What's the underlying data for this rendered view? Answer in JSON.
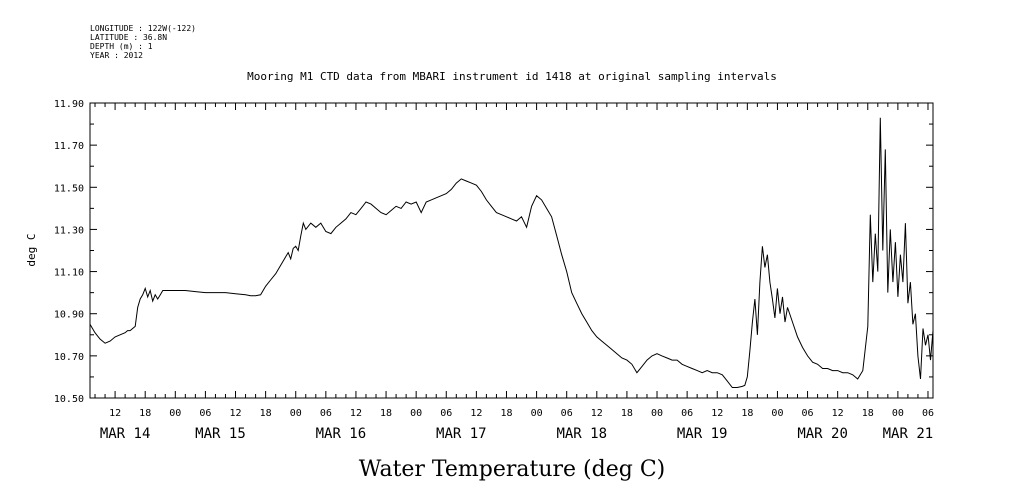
{
  "metadata": [
    "LONGITUDE : 122W(-122)",
    "LATITUDE : 36.8N",
    "DEPTH (m) : 1",
    "YEAR : 2012"
  ],
  "chart_data": {
    "type": "line",
    "title": "Mooring M1 CTD data from MBARI instrument id 1418 at original sampling intervals",
    "xlabel": "Water Temperature (deg C)",
    "ylabel": "deg C",
    "ylim": [
      10.5,
      11.9
    ],
    "yticks": [
      "10.50",
      "10.70",
      "10.90",
      "11.10",
      "11.30",
      "11.50",
      "11.70",
      "11.90"
    ],
    "x_units": "hours since MAR 14 00:00 (2012)",
    "xlim": [
      7,
      175
    ],
    "hour_ticks": [
      {
        "h": 12,
        "label": "12"
      },
      {
        "h": 18,
        "label": "18"
      },
      {
        "h": 24,
        "label": "00"
      },
      {
        "h": 30,
        "label": "06"
      },
      {
        "h": 36,
        "label": "12"
      },
      {
        "h": 42,
        "label": "18"
      },
      {
        "h": 48,
        "label": "00"
      },
      {
        "h": 54,
        "label": "06"
      },
      {
        "h": 60,
        "label": "12"
      },
      {
        "h": 66,
        "label": "18"
      },
      {
        "h": 72,
        "label": "00"
      },
      {
        "h": 78,
        "label": "06"
      },
      {
        "h": 84,
        "label": "12"
      },
      {
        "h": 90,
        "label": "18"
      },
      {
        "h": 96,
        "label": "00"
      },
      {
        "h": 102,
        "label": "06"
      },
      {
        "h": 108,
        "label": "12"
      },
      {
        "h": 114,
        "label": "18"
      },
      {
        "h": 120,
        "label": "00"
      },
      {
        "h": 126,
        "label": "06"
      },
      {
        "h": 132,
        "label": "12"
      },
      {
        "h": 138,
        "label": "18"
      },
      {
        "h": 144,
        "label": "00"
      },
      {
        "h": 150,
        "label": "06"
      },
      {
        "h": 156,
        "label": "12"
      },
      {
        "h": 162,
        "label": "18"
      },
      {
        "h": 168,
        "label": "00"
      },
      {
        "h": 174,
        "label": "06"
      }
    ],
    "day_labels": [
      {
        "h": 14,
        "label": "MAR 14"
      },
      {
        "h": 33,
        "label": "MAR 15"
      },
      {
        "h": 57,
        "label": "MAR 16"
      },
      {
        "h": 81,
        "label": "MAR 17"
      },
      {
        "h": 105,
        "label": "MAR 18"
      },
      {
        "h": 129,
        "label": "MAR 19"
      },
      {
        "h": 153,
        "label": "MAR 20"
      },
      {
        "h": 170,
        "label": "MAR 21"
      }
    ],
    "series": [
      {
        "x": [
          7,
          8,
          9,
          10,
          11,
          12,
          13,
          14,
          14.5,
          15,
          16,
          16.5,
          17,
          17.5,
          18,
          18.5,
          19,
          19.5,
          20,
          20.5,
          21,
          21.5,
          22,
          23,
          24,
          26,
          28,
          30,
          32,
          34,
          36,
          38,
          39,
          40,
          41,
          42,
          43,
          44,
          45,
          46,
          46.5,
          47,
          47.5,
          48,
          48.5,
          49,
          49.5,
          50,
          51,
          52,
          53,
          54,
          55,
          56,
          57,
          58,
          59,
          60,
          61,
          62,
          63,
          64,
          65,
          66,
          67,
          68,
          69,
          70,
          71,
          72,
          73,
          74,
          75,
          76,
          77,
          78,
          79,
          80,
          81,
          82,
          83,
          84,
          85,
          86,
          87,
          88,
          89,
          90,
          91,
          92,
          93,
          94,
          95,
          96,
          97,
          98,
          99,
          100,
          101,
          102,
          103,
          104,
          105,
          106,
          107,
          108,
          109,
          110,
          111,
          112,
          113,
          114,
          115,
          116,
          117,
          118,
          119,
          120,
          121,
          122,
          123,
          124,
          125,
          126,
          127,
          128,
          129,
          130,
          131,
          132,
          133,
          134,
          135,
          136,
          137,
          137.5,
          138,
          138.5,
          139,
          139.5,
          140,
          140.5,
          141,
          141.5,
          142,
          142.5,
          143,
          143.5,
          144,
          144.5,
          145,
          145.5,
          146,
          147,
          148,
          149,
          150,
          151,
          152,
          153,
          154,
          155,
          156,
          157,
          158,
          159,
          160,
          161,
          162,
          162.5,
          163,
          163.5,
          164,
          164.5,
          165,
          165.5,
          166,
          166.5,
          167,
          167.5,
          168,
          168.5,
          169,
          169.5,
          170,
          170.5,
          171,
          171.5,
          172,
          172.5,
          173,
          173.5,
          174,
          174.5,
          175
        ],
        "y": [
          10.85,
          10.81,
          10.78,
          10.76,
          10.77,
          10.79,
          10.8,
          10.81,
          10.82,
          10.82,
          10.84,
          10.93,
          10.97,
          10.99,
          11.02,
          10.98,
          11.01,
          10.96,
          10.99,
          10.97,
          10.99,
          11.01,
          11.01,
          11.01,
          11.01,
          11.01,
          11.005,
          11.0,
          11.0,
          11.0,
          10.995,
          10.99,
          10.985,
          10.985,
          10.99,
          11.03,
          11.06,
          11.09,
          11.13,
          11.17,
          11.19,
          11.16,
          11.21,
          11.22,
          11.2,
          11.27,
          11.33,
          11.3,
          11.33,
          11.31,
          11.33,
          11.29,
          11.28,
          11.31,
          11.33,
          11.35,
          11.38,
          11.37,
          11.4,
          11.43,
          11.42,
          11.4,
          11.38,
          11.37,
          11.39,
          11.41,
          11.4,
          11.43,
          11.42,
          11.43,
          11.38,
          11.43,
          11.44,
          11.45,
          11.46,
          11.47,
          11.49,
          11.52,
          11.54,
          11.53,
          11.52,
          11.51,
          11.48,
          11.44,
          11.41,
          11.38,
          11.37,
          11.36,
          11.35,
          11.34,
          11.36,
          11.31,
          11.41,
          11.46,
          11.44,
          11.4,
          11.36,
          11.27,
          11.18,
          11.1,
          11.0,
          10.95,
          10.9,
          10.86,
          10.82,
          10.79,
          10.77,
          10.75,
          10.73,
          10.71,
          10.69,
          10.68,
          10.66,
          10.62,
          10.65,
          10.68,
          10.7,
          10.71,
          10.7,
          10.69,
          10.68,
          10.68,
          10.66,
          10.65,
          10.64,
          10.63,
          10.62,
          10.63,
          10.62,
          10.62,
          10.61,
          10.58,
          10.55,
          10.55,
          10.555,
          10.56,
          10.6,
          10.72,
          10.86,
          10.97,
          10.8,
          11.05,
          11.22,
          11.12,
          11.18,
          11.05,
          10.97,
          10.88,
          11.02,
          10.9,
          10.98,
          10.86,
          10.93,
          10.86,
          10.79,
          10.74,
          10.7,
          10.67,
          10.66,
          10.64,
          10.64,
          10.63,
          10.63,
          10.62,
          10.62,
          10.61,
          10.59,
          10.63,
          10.84,
          11.37,
          11.05,
          11.28,
          11.1,
          11.83,
          11.2,
          11.68,
          11.0,
          11.3,
          11.05,
          11.24,
          10.98,
          11.18,
          11.05,
          11.33,
          10.95,
          11.05,
          10.85,
          10.9,
          10.7,
          10.59,
          10.83,
          10.75,
          10.8,
          10.68,
          10.82
        ]
      }
    ]
  }
}
